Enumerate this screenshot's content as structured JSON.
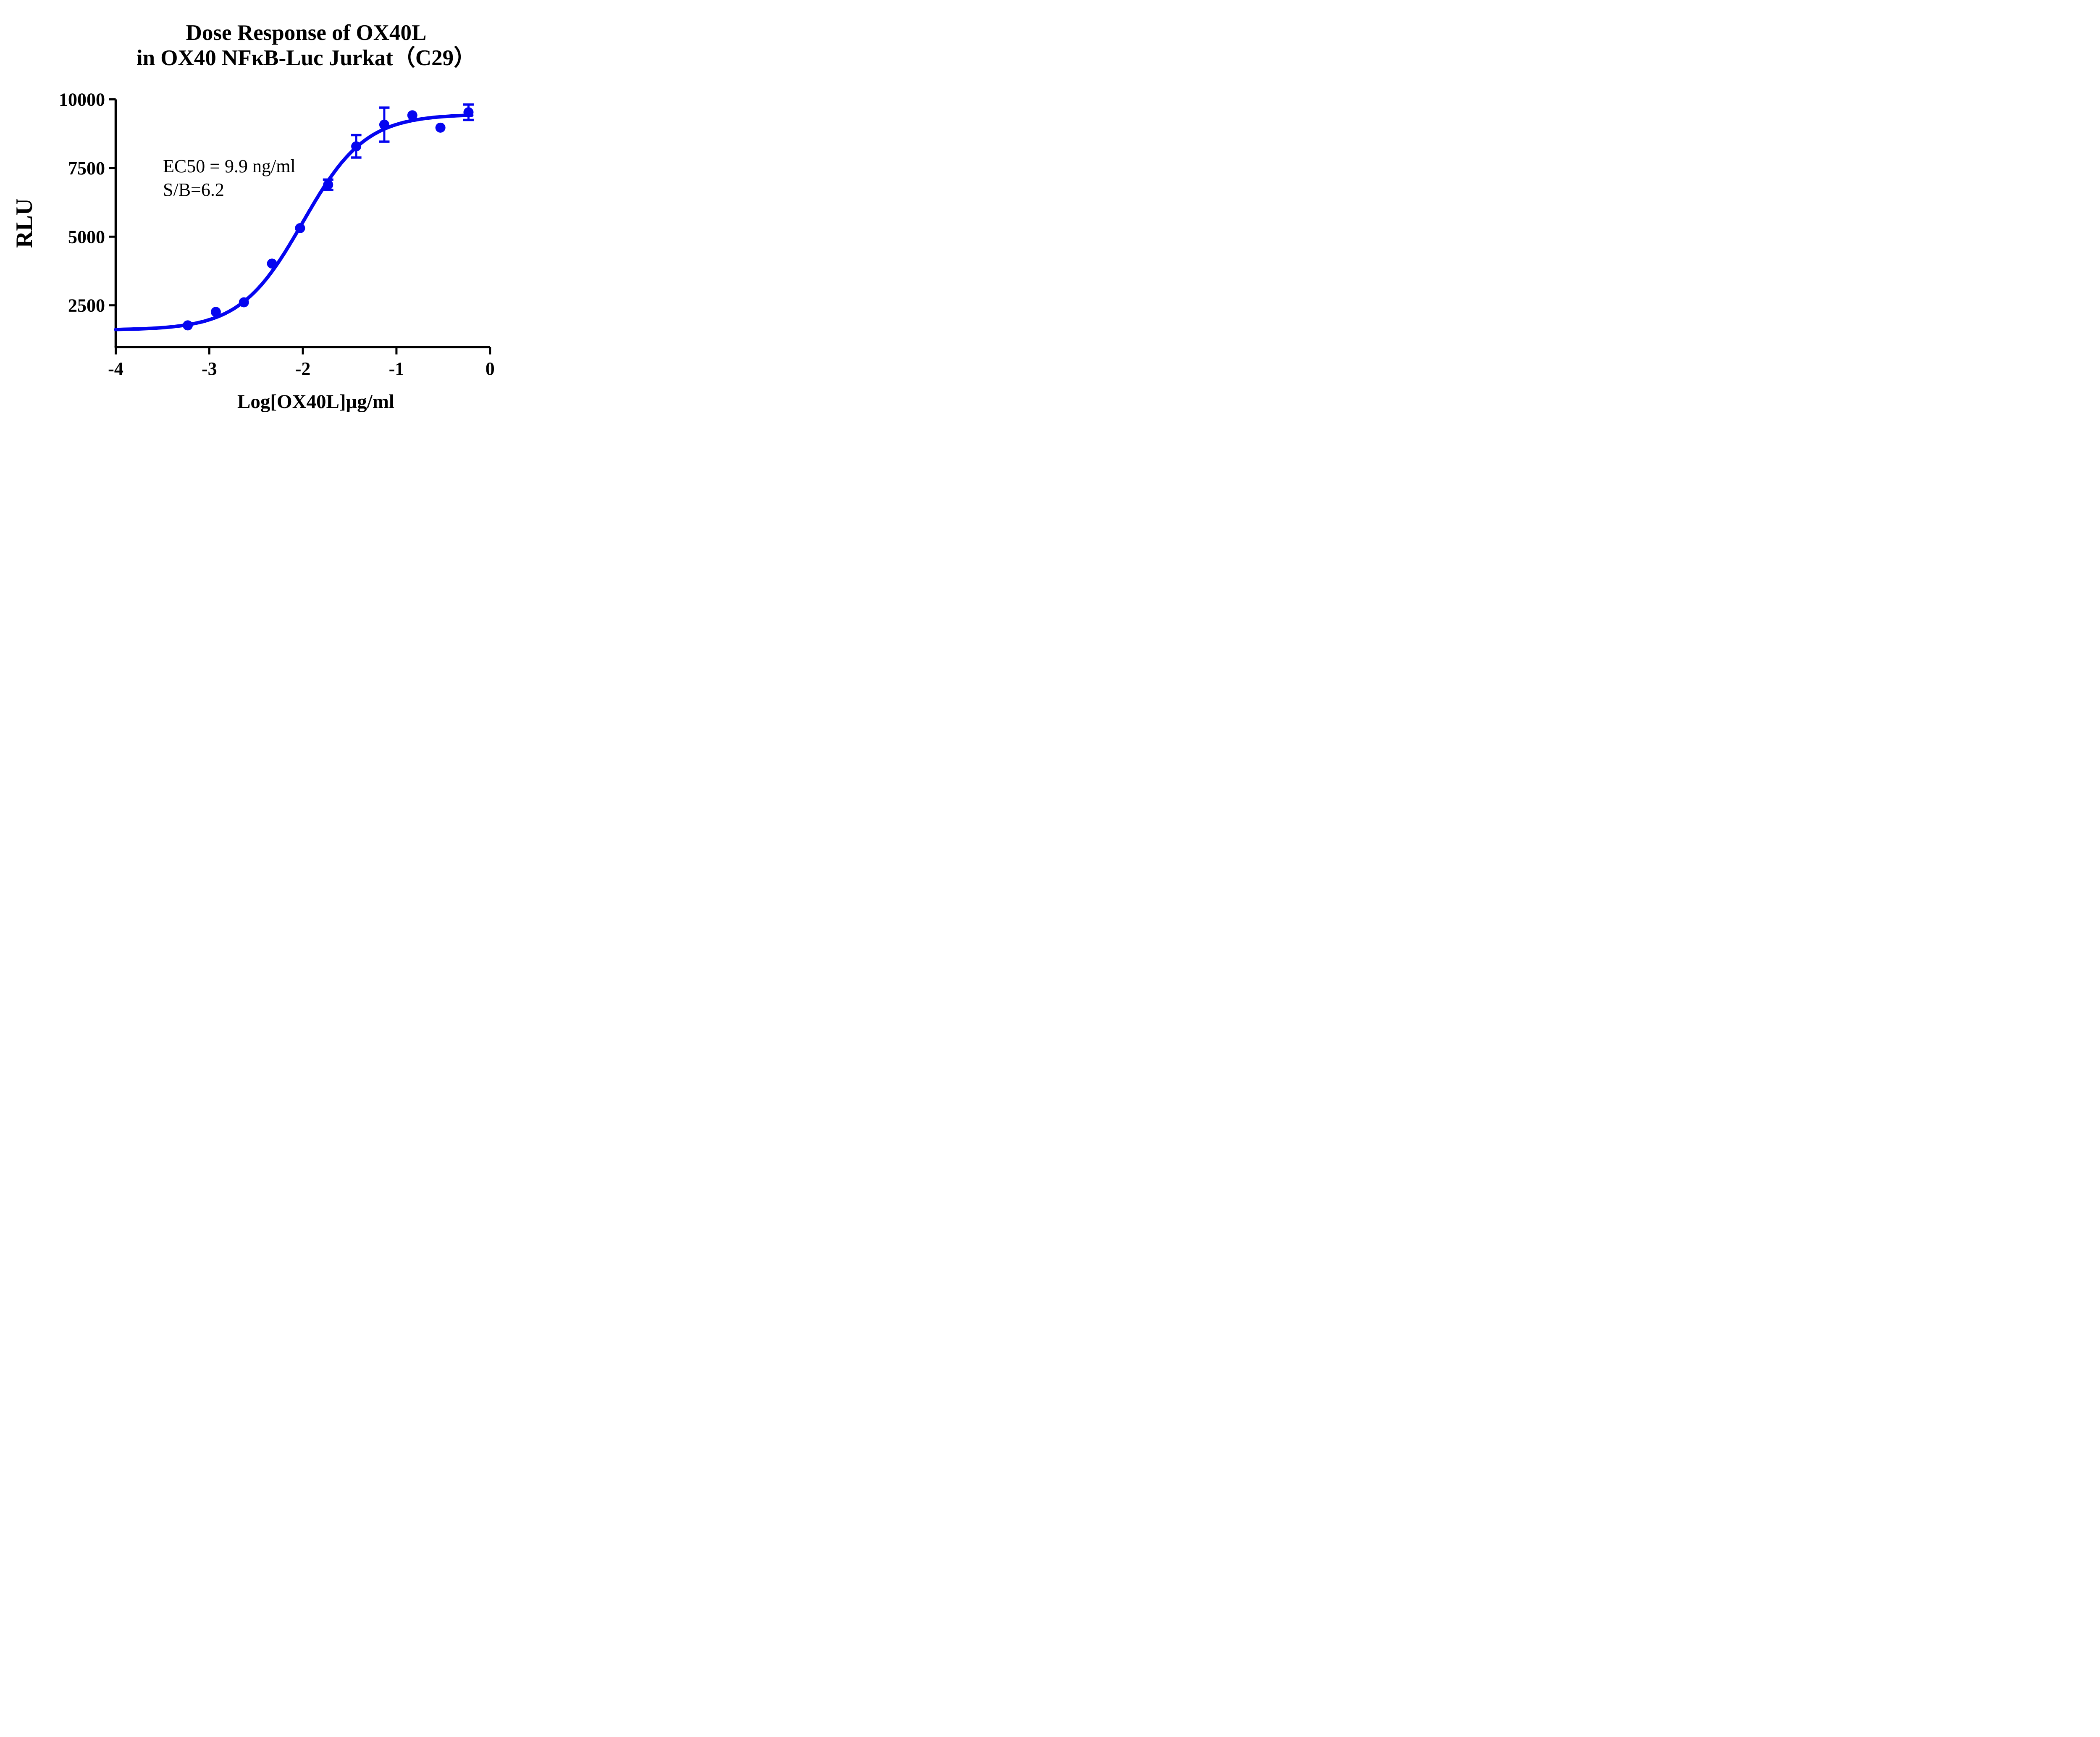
{
  "page": {
    "background": "#ffffff"
  },
  "title": {
    "line1": "Dose Response of OX40L",
    "line2": "in OX40 NFκB-Luc Jurkat（C29）"
  },
  "annotation": {
    "line1": "EC50 = 9.9 ng/ml",
    "line2": "S/B=6.2"
  },
  "axes": {
    "x_label": "Log[OX40L]μg/ml",
    "y_label": "RLU",
    "x_tick_labels": [
      "-4",
      "-3",
      "-2",
      "-1",
      "0"
    ],
    "x_tick_values": [
      -4,
      -3,
      -2,
      -1,
      0
    ],
    "y_tick_labels": [
      "2500",
      "5000",
      "7500",
      "10000"
    ],
    "y_tick_values": [
      2500,
      5000,
      7500,
      10000
    ]
  },
  "colors": {
    "series": "#0505f0",
    "axis": "#000000",
    "text": "#000000"
  },
  "chart_data": {
    "type": "scatter",
    "title": "Dose Response of OX40L in OX40 NFκB-Luc Jurkat（C29）",
    "xlabel": "Log[OX40L]μg/ml",
    "ylabel": "RLU",
    "xlim": [
      -4,
      0
    ],
    "ylim": [
      980,
      10000
    ],
    "grid": false,
    "legend_position": "none",
    "x": [
      -3.23,
      -2.93,
      -2.63,
      -2.33,
      -2.03,
      -1.73,
      -1.43,
      -1.13,
      -0.83,
      -0.53,
      -0.23
    ],
    "y": [
      1770,
      2260,
      2610,
      4020,
      5310,
      6890,
      8290,
      9080,
      9420,
      8970,
      9530
    ],
    "y_err": [
      null,
      null,
      null,
      null,
      null,
      190,
      410,
      620,
      null,
      null,
      280
    ],
    "fit": {
      "model": "4PL",
      "bottom": 1600,
      "top": 9460,
      "log_ec50": -2.0,
      "hill": 1.3,
      "curve_x_start": -4,
      "curve_x_end": -0.195
    },
    "ec50_label": "EC50 = 9.9 ng/ml",
    "sb_label": "S/B=6.2"
  }
}
